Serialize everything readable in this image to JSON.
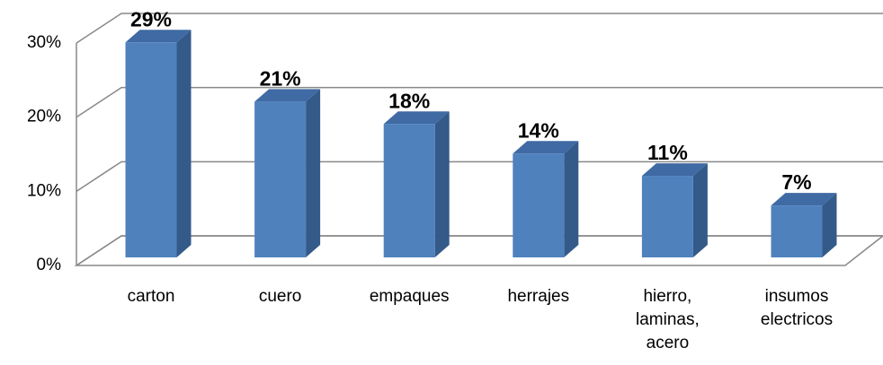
{
  "chart_data": {
    "type": "bar3d",
    "categories": [
      "carton",
      "cuero",
      "empaques",
      "herrajes",
      "hierro, laminas, acero",
      "insumos electricos"
    ],
    "values": [
      29,
      21,
      18,
      14,
      11,
      7
    ],
    "value_labels": [
      "29%",
      "21%",
      "18%",
      "14%",
      "11%",
      "7%"
    ],
    "color": "#4f81bd",
    "ylim": [
      0,
      30
    ],
    "yticks": [
      {
        "value": 0,
        "label": "0%"
      },
      {
        "value": 10,
        "label": "10%"
      },
      {
        "value": 20,
        "label": "20%"
      },
      {
        "value": 30,
        "label": "30%"
      }
    ],
    "grid": true
  }
}
